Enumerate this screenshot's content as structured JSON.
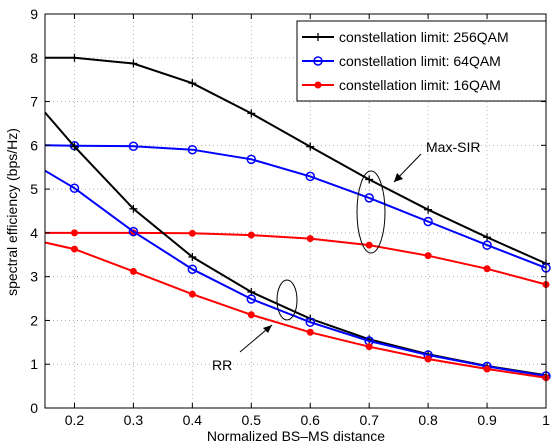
{
  "chart_data": {
    "type": "line",
    "xlabel": "Normalized BS–MS distance",
    "ylabel": "spectral efficiency (bps/Hz)",
    "xlim": [
      0.15,
      1.0
    ],
    "ylim": [
      0,
      9
    ],
    "xticks": [
      0.2,
      0.3,
      0.4,
      0.5,
      0.6,
      0.7,
      0.8,
      0.9,
      1
    ],
    "xtick_labels": [
      "0.2",
      "0.3",
      "0.4",
      "0.5",
      "0.6",
      "0.7",
      "0.8",
      "0.9",
      "1"
    ],
    "yticks": [
      0,
      1,
      2,
      3,
      4,
      5,
      6,
      7,
      8,
      9
    ],
    "grid": true,
    "legend_position": "top-right",
    "legend": [
      {
        "label": "constellation limit: 256QAM",
        "color": "#000000",
        "marker": "plus"
      },
      {
        "label": "constellation limit: 64QAM",
        "color": "#0000ff",
        "marker": "circle"
      },
      {
        "label": "constellation limit: 16QAM",
        "color": "#ff0000",
        "marker": "dot"
      }
    ],
    "series": [
      {
        "group": "Max-SIR",
        "color": "#000000",
        "marker": "plus",
        "x": [
          0.15,
          0.2,
          0.3,
          0.4,
          0.5,
          0.6,
          0.7,
          0.8,
          0.9,
          1.0
        ],
        "y": [
          8.0,
          8.0,
          7.87,
          7.42,
          6.73,
          5.97,
          5.22,
          4.53,
          3.9,
          3.3
        ]
      },
      {
        "group": "Max-SIR",
        "color": "#0000ff",
        "marker": "circle",
        "x": [
          0.15,
          0.2,
          0.3,
          0.4,
          0.5,
          0.6,
          0.7,
          0.8,
          0.9,
          1.0
        ],
        "y": [
          6.0,
          5.99,
          5.98,
          5.9,
          5.68,
          5.29,
          4.8,
          4.26,
          3.72,
          3.2
        ]
      },
      {
        "group": "Max-SIR",
        "color": "#ff0000",
        "marker": "dot",
        "x": [
          0.15,
          0.2,
          0.3,
          0.4,
          0.5,
          0.6,
          0.7,
          0.8,
          0.9,
          1.0
        ],
        "y": [
          4.0,
          4.0,
          4.0,
          3.99,
          3.95,
          3.87,
          3.72,
          3.48,
          3.18,
          2.82
        ]
      },
      {
        "group": "RR",
        "color": "#000000",
        "marker": "plus",
        "x": [
          0.15,
          0.2,
          0.3,
          0.4,
          0.5,
          0.6,
          0.7,
          0.8,
          0.9,
          1.0
        ],
        "y": [
          6.75,
          5.97,
          4.55,
          3.45,
          2.65,
          2.04,
          1.57,
          1.23,
          0.96,
          0.75
        ]
      },
      {
        "group": "RR",
        "color": "#0000ff",
        "marker": "circle",
        "x": [
          0.15,
          0.2,
          0.3,
          0.4,
          0.5,
          0.6,
          0.7,
          0.8,
          0.9,
          1.0
        ],
        "y": [
          5.42,
          5.02,
          4.03,
          3.17,
          2.49,
          1.96,
          1.53,
          1.21,
          0.95,
          0.73
        ]
      },
      {
        "group": "RR",
        "color": "#ff0000",
        "marker": "dot",
        "x": [
          0.15,
          0.2,
          0.3,
          0.4,
          0.5,
          0.6,
          0.7,
          0.8,
          0.9,
          1.0
        ],
        "y": [
          3.78,
          3.63,
          3.12,
          2.6,
          2.13,
          1.73,
          1.4,
          1.12,
          0.89,
          0.69
        ]
      }
    ],
    "annotations": [
      {
        "text": "Max-SIR"
      },
      {
        "text": "RR"
      }
    ]
  }
}
